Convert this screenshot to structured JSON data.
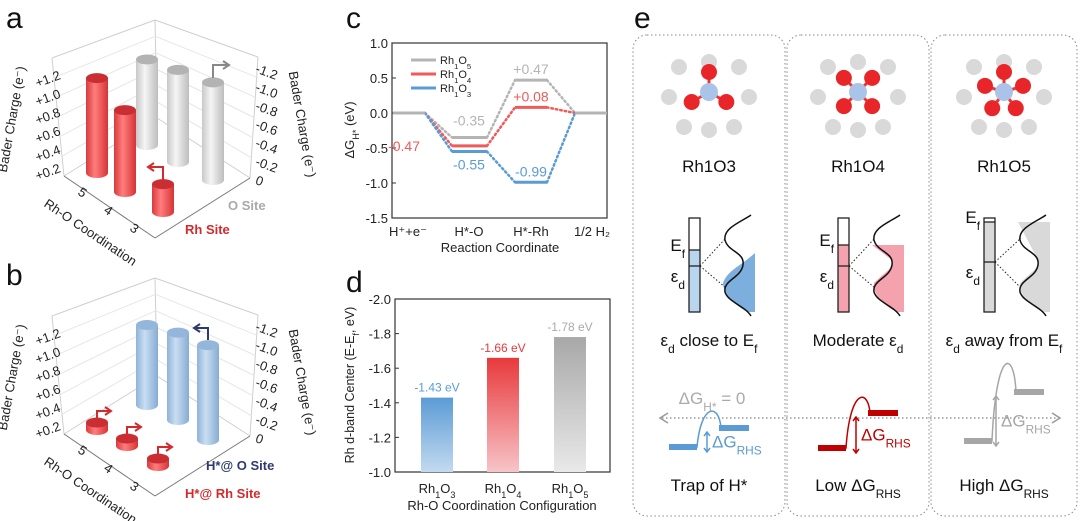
{
  "panel_labels": {
    "a": "a",
    "b": "b",
    "c": "c",
    "d": "d",
    "e": "e"
  },
  "colors": {
    "red": "#e8474a",
    "grey": "#bdbdbd",
    "blue": "#5b9bd5",
    "darkred": "#c00000",
    "navy": "#2e3b6e"
  },
  "chart_data": [
    {
      "id": "a",
      "type": "bar3d",
      "ylabel_left": "Bader Charge (e⁻)",
      "ylabel_right": "Bader Charge (e⁻)",
      "xlabel": "Rh-O Coordination",
      "left_ticks": [
        "+0.2",
        "+0.4",
        "+0.6",
        "+0.8",
        "+1.0",
        "+1.2"
      ],
      "right_ticks": [
        "0",
        "-0.2",
        "-0.4",
        "-0.6",
        "-0.8",
        "-1.0",
        "-1.2"
      ],
      "coord_ticks": [
        "5",
        "4",
        "3"
      ],
      "series": [
        {
          "name": "Rh Site",
          "color": "#e8474a",
          "values": [
            1.02,
            0.88,
            0.3
          ]
        },
        {
          "name": "O Site",
          "color": "#bdbdbd",
          "values": [
            -0.92,
            -0.99,
            -1.05
          ]
        }
      ]
    },
    {
      "id": "b",
      "type": "bar3d",
      "ylabel_left": "Bader Charge (e⁻)",
      "ylabel_right": "Bader Charge (e⁻)",
      "xlabel": "Rh-O Coordination",
      "left_ticks": [
        "+0.2",
        "+0.4",
        "+0.6",
        "+0.8",
        "+1.0",
        "+1.2"
      ],
      "right_ticks": [
        "0",
        "-0.2",
        "-0.4",
        "-0.6",
        "-0.8",
        "-1.0",
        "-1.2"
      ],
      "coord_ticks": [
        "5",
        "4",
        "3"
      ],
      "series": [
        {
          "name": "H*@ Rh Site",
          "color": "#e8474a",
          "values": [
            0.08,
            0.08,
            0.08
          ]
        },
        {
          "name": "H*@ O Site",
          "color": "#9dbfe0",
          "values": [
            -0.86,
            -0.94,
            -1.02
          ]
        }
      ]
    },
    {
      "id": "c",
      "type": "line",
      "ylabel": "ΔG",
      "ylabel_sub": "H*",
      "ylabel_unit": " (eV)",
      "xlabel": "Reaction Coordinate",
      "categories": [
        "H⁺+e⁻",
        "H*-O",
        "H*-Rh",
        "1/2 H₂"
      ],
      "ylim": [
        -1.5,
        1.0
      ],
      "yticks": [
        "1.0",
        "0.5",
        "0.0",
        "-0.5",
        "-1.0",
        "-1.5"
      ],
      "legend": "top-left",
      "series": [
        {
          "name": "Rh1O5",
          "color": "#b4b4b4",
          "values": [
            0,
            -0.35,
            0.47,
            0
          ],
          "labels": [
            "",
            "-0.35",
            "+0.47",
            ""
          ]
        },
        {
          "name": "Rh1O4",
          "color": "#ef5a5a",
          "values": [
            0,
            -0.47,
            0.08,
            0
          ],
          "labels": [
            "",
            "-0.47",
            "+0.08",
            ""
          ]
        },
        {
          "name": "Rh1O3",
          "color": "#5b9bd5",
          "values": [
            0,
            -0.55,
            -0.99,
            0
          ],
          "labels": [
            "",
            "-0.55",
            "-0.99",
            ""
          ]
        }
      ]
    },
    {
      "id": "d",
      "type": "bar",
      "ylabel": "Rh d-band Center (E-E",
      "ylabel_sub": "f",
      "ylabel_unit": ", eV)",
      "xlabel": "Rh-O Coordination Configuration",
      "categories": [
        "Rh1O3",
        "Rh1O4",
        "Rh1O5"
      ],
      "values": [
        -1.43,
        -1.66,
        -1.78
      ],
      "labels": [
        "-1.43 eV",
        "-1.66 eV",
        "-1.78 eV"
      ],
      "colors": [
        "#5b9bd5",
        "#e8393c",
        "#aaaaaa"
      ],
      "ylim": [
        -1.0,
        -2.0
      ],
      "yticks": [
        "-2.0",
        "-1.8",
        "-1.6",
        "-1.4",
        "-1.2",
        "-1.0"
      ]
    }
  ],
  "panel_e": {
    "columns": [
      {
        "formula": "Rh1O3",
        "color": "#5b9bd5",
        "fill": "#b9d5ee",
        "desc_pre": "ε",
        "desc_pre_sub": "d",
        "desc_mid": " close to E",
        "desc_mid_sub": "f",
        "bottom_text": "Trap of H*",
        "bottom_sub": "",
        "rhs": "ΔG",
        "rhs_sub": "RHS"
      },
      {
        "formula": "Rh1O4",
        "color": "#c00000",
        "fill": "#f4a3ae",
        "desc_pre": "Moderate ε",
        "desc_pre_sub": "d",
        "desc_mid": "",
        "desc_mid_sub": "",
        "bottom_text": "Low ΔG",
        "bottom_sub": "RHS",
        "rhs": "ΔG",
        "rhs_sub": "RHS"
      },
      {
        "formula": "Rh1O5",
        "color": "#a6a6a6",
        "fill": "#d9d9d9",
        "desc_pre": "ε",
        "desc_pre_sub": "d",
        "desc_mid": " away from E",
        "desc_mid_sub": "f",
        "bottom_text": "High ΔG",
        "bottom_sub": "RHS",
        "rhs": "ΔG",
        "rhs_sub": "RHS"
      }
    ],
    "ef_label": "E",
    "ef_sub": "f",
    "ed_label": "ε",
    "ed_sub": "d",
    "dg_zero": "ΔG",
    "dg_zero_sub": "H*",
    "dg_zero_rest": " = 0"
  }
}
